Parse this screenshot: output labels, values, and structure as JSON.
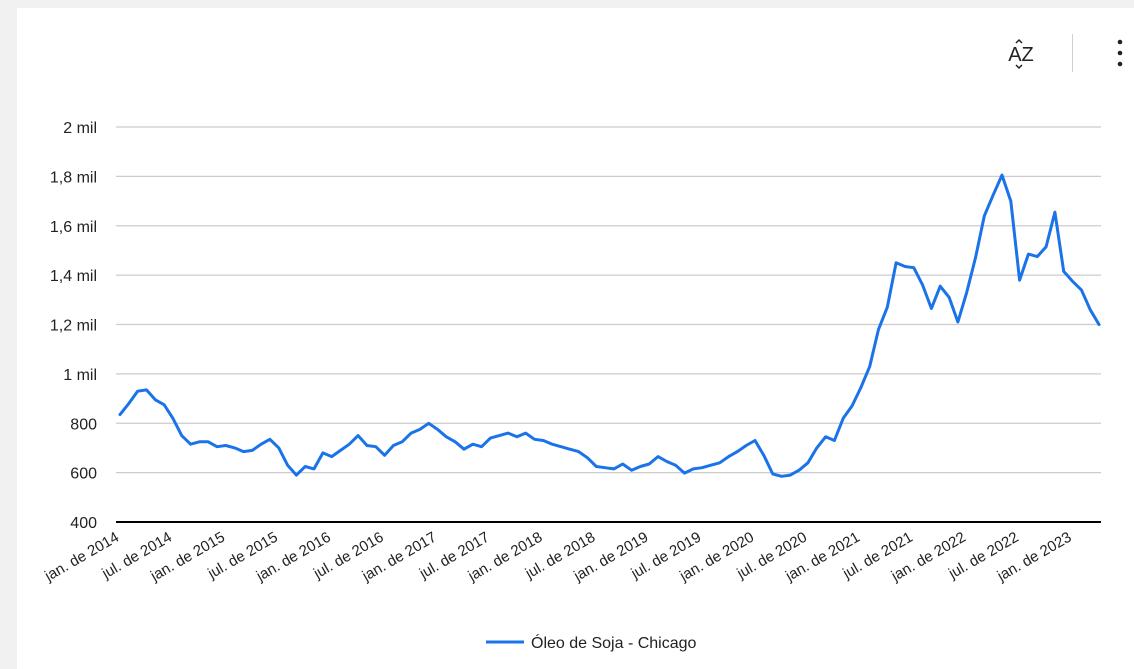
{
  "toolbar": {
    "sort_icon": "sort-az-icon",
    "more_icon": "more-vert-icon"
  },
  "colors": {
    "series": "#1a73e8",
    "grid": "#cccccc",
    "axis": "#000000",
    "text": "#222222"
  },
  "chart_data": {
    "type": "line",
    "title": "",
    "xlabel": "",
    "ylabel": "",
    "ylim": [
      400,
      2000
    ],
    "y_ticks": [
      400,
      600,
      800,
      1000,
      1200,
      1400,
      1600,
      1800,
      2000
    ],
    "y_tick_labels": [
      "400",
      "600",
      "800",
      "1 mil",
      "1,2 mil",
      "1,4 mil",
      "1,6 mil",
      "1,8 mil",
      "2 mil"
    ],
    "x_tick_labels": [
      "jan. de 2014",
      "jul. de 2014",
      "jan. de 2015",
      "jul. de 2015",
      "jan. de 2016",
      "jul. de 2016",
      "jan. de 2017",
      "jul. de 2017",
      "jan. de 2018",
      "jul. de 2018",
      "jan. de 2019",
      "jul. de 2019",
      "jan. de 2020",
      "jul. de 2020",
      "jan. de 2021",
      "jul. de 2021",
      "jan. de 2022",
      "jul. de 2022",
      "jan. de 2023"
    ],
    "grid": true,
    "legend": "bottom",
    "x_start": "jan. de 2014",
    "x_step": "month",
    "series": [
      {
        "name": "Óleo de Soja - Chicago",
        "color": "#1a73e8",
        "values": [
          835,
          880,
          930,
          935,
          895,
          875,
          820,
          750,
          715,
          725,
          725,
          705,
          710,
          700,
          685,
          690,
          715,
          735,
          700,
          630,
          590,
          625,
          615,
          680,
          665,
          690,
          715,
          750,
          710,
          705,
          670,
          710,
          725,
          760,
          775,
          800,
          775,
          745,
          725,
          695,
          715,
          705,
          740,
          750,
          760,
          745,
          760,
          735,
          730,
          715,
          705,
          695,
          685,
          660,
          625,
          620,
          615,
          635,
          610,
          625,
          635,
          665,
          645,
          630,
          598,
          615,
          620,
          630,
          640,
          665,
          685,
          710,
          730,
          670,
          595,
          585,
          590,
          610,
          640,
          700,
          745,
          730,
          820,
          870,
          945,
          1030,
          1180,
          1270,
          1450,
          1435,
          1430,
          1360,
          1265,
          1355,
          1310,
          1210,
          1330,
          1470,
          1640,
          1725,
          1805,
          1700,
          1380,
          1485,
          1475,
          1515,
          1655,
          1415,
          1375,
          1340,
          1260,
          1200
        ]
      }
    ]
  }
}
